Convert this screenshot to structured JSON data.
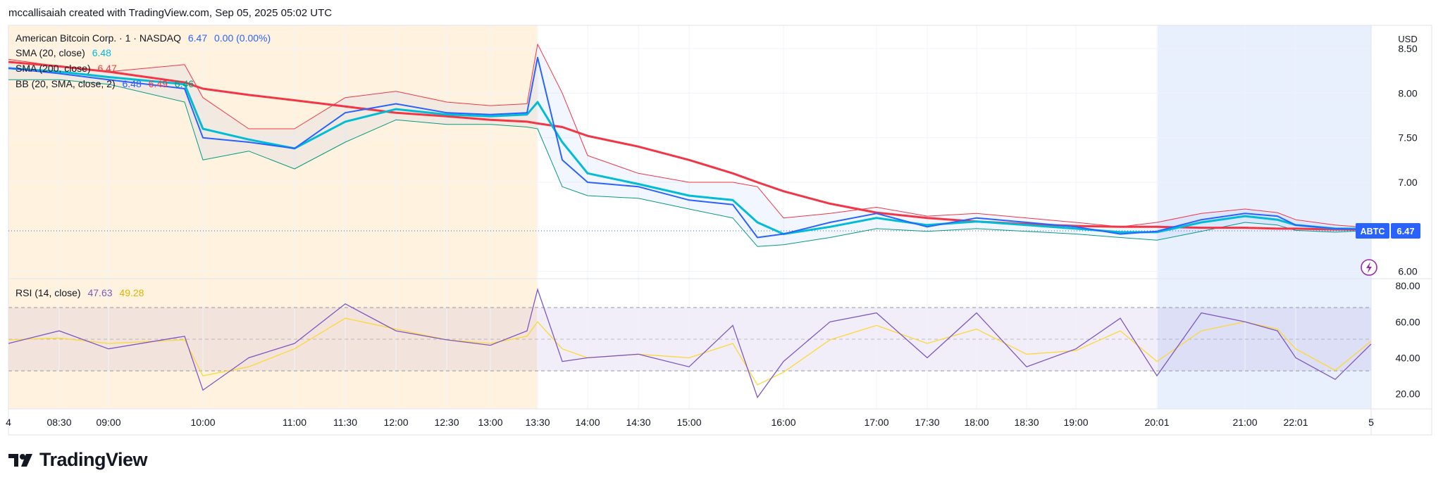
{
  "credit": "mccallisaiah created with TradingView.com, Sep 05, 2025 05:02 UTC",
  "legend": {
    "symbol": "American Bitcoin Corp. · 1 · NASDAQ",
    "last": "6.47",
    "change": "0.00 (0.00%)",
    "sma20_label": "SMA (20, close)",
    "sma20_value": "6.48",
    "sma200_label": "SMA (200, close)",
    "sma200_value": "6.47",
    "bb_label": "BB (20, SMA, close, 2)",
    "bb_basis": "6.48",
    "bb_upper": "6.49",
    "bb_lower": "6.46",
    "rsi_label": "RSI (14, close)",
    "rsi_value": "47.63",
    "rsi_ma_value": "49.28"
  },
  "currency": "USD",
  "ticker_badge": {
    "symbol": "ABTC",
    "price": "6.47"
  },
  "icons": {
    "flash": "lightning-circle-icon",
    "logo": "tradingview-logo-icon"
  },
  "brand": "TradingView",
  "colors": {
    "price": "#2962ff",
    "sma20": "#00bcd4",
    "sma200": "#f23645",
    "bb_upper": "#f23645",
    "bb_lower": "#089981",
    "rsi": "#7e57c2",
    "rsi_ma": "#fdd835",
    "premarket_bg": "#fff3e0",
    "afterhours_bg": "#e3f2fd"
  },
  "chart_data": [
    {
      "type": "line",
      "title": "American Bitcoin Corp. · 1 · NASDAQ",
      "x_tick_labels": [
        "4",
        "08:30",
        "09:00",
        "10:00",
        "11:00",
        "11:30",
        "12:00",
        "12:30",
        "13:00",
        "13:30",
        "14:00",
        "14:30",
        "15:00",
        "16:00",
        "17:00",
        "17:30",
        "18:00",
        "18:30",
        "19:00",
        "20:01",
        "21:00",
        "22:01",
        "5"
      ],
      "y_tick_labels": [
        "8.50",
        "8.00",
        "7.50",
        "7.00",
        "6.00"
      ],
      "ylim": [
        5.95,
        8.65
      ],
      "x": [
        "4",
        "08:30",
        "09:00",
        "09:45",
        "10:00",
        "10:30",
        "11:00",
        "11:30",
        "12:00",
        "12:30",
        "13:00",
        "13:20",
        "13:30",
        "13:45",
        "14:00",
        "14:30",
        "15:00",
        "15:30",
        "15:45",
        "16:00",
        "16:30",
        "17:00",
        "17:30",
        "18:00",
        "18:30",
        "19:00",
        "19:30",
        "20:01",
        "20:30",
        "21:00",
        "21:30",
        "22:01",
        "22:30",
        "5"
      ],
      "series": [
        {
          "name": "Price",
          "values": [
            8.28,
            8.22,
            8.15,
            8.05,
            7.5,
            7.45,
            7.38,
            7.78,
            7.88,
            7.78,
            7.76,
            7.78,
            8.4,
            7.25,
            7.0,
            6.95,
            6.8,
            6.75,
            6.38,
            6.42,
            6.55,
            6.65,
            6.5,
            6.6,
            6.55,
            6.5,
            6.42,
            6.45,
            6.58,
            6.65,
            6.62,
            6.52,
            6.48,
            6.47
          ]
        },
        {
          "name": "SMA (20, close)",
          "values": [
            8.28,
            8.24,
            8.18,
            8.1,
            7.6,
            7.48,
            7.38,
            7.68,
            7.82,
            7.76,
            7.74,
            7.76,
            7.9,
            7.45,
            7.1,
            6.98,
            6.85,
            6.8,
            6.55,
            6.42,
            6.5,
            6.6,
            6.52,
            6.56,
            6.52,
            6.48,
            6.44,
            6.44,
            6.55,
            6.62,
            6.58,
            6.52,
            6.48,
            6.48
          ]
        },
        {
          "name": "SMA (200, close)",
          "values": [
            8.35,
            8.3,
            8.24,
            8.12,
            8.05,
            7.98,
            7.92,
            7.85,
            7.78,
            7.74,
            7.7,
            7.68,
            7.66,
            7.62,
            7.52,
            7.4,
            7.25,
            7.1,
            7.0,
            6.9,
            6.76,
            6.66,
            6.6,
            6.56,
            6.53,
            6.51,
            6.5,
            6.5,
            6.49,
            6.49,
            6.48,
            6.48,
            6.47,
            6.47
          ]
        },
        {
          "name": "BB upper",
          "values": [
            8.38,
            8.3,
            8.24,
            8.32,
            7.95,
            7.6,
            7.6,
            7.95,
            8.02,
            7.9,
            7.86,
            7.88,
            8.55,
            8.0,
            7.3,
            7.1,
            7.0,
            7.0,
            6.95,
            6.6,
            6.65,
            6.72,
            6.62,
            6.65,
            6.6,
            6.55,
            6.5,
            6.55,
            6.65,
            6.7,
            6.66,
            6.58,
            6.52,
            6.49
          ]
        },
        {
          "name": "BB lower",
          "values": [
            8.15,
            8.15,
            8.1,
            7.9,
            7.25,
            7.35,
            7.15,
            7.45,
            7.7,
            7.65,
            7.65,
            7.62,
            7.6,
            6.95,
            6.85,
            6.82,
            6.7,
            6.6,
            6.28,
            6.3,
            6.38,
            6.48,
            6.45,
            6.48,
            6.45,
            6.42,
            6.38,
            6.35,
            6.45,
            6.55,
            6.52,
            6.46,
            6.44,
            6.46
          ]
        }
      ],
      "last_price": 6.47
    },
    {
      "type": "line",
      "title": "RSI (14, close)",
      "y_tick_labels": [
        "80.00",
        "60.00",
        "40.00",
        "20.00"
      ],
      "ylim": [
        12,
        84
      ],
      "bands": {
        "upper": 70,
        "middle": 50,
        "lower": 30
      },
      "x": [
        "4",
        "08:30",
        "09:00",
        "09:45",
        "10:00",
        "10:30",
        "11:00",
        "11:30",
        "12:00",
        "12:30",
        "13:00",
        "13:20",
        "13:30",
        "13:45",
        "14:00",
        "14:30",
        "15:00",
        "15:30",
        "15:45",
        "16:00",
        "16:30",
        "17:00",
        "17:30",
        "18:00",
        "18:30",
        "19:00",
        "19:30",
        "20:01",
        "20:30",
        "21:00",
        "21:30",
        "22:01",
        "22:30",
        "5"
      ],
      "series": [
        {
          "name": "RSI",
          "values": [
            48,
            55,
            45,
            52,
            22,
            40,
            48,
            70,
            55,
            50,
            47,
            55,
            78,
            38,
            40,
            42,
            35,
            58,
            18,
            38,
            60,
            65,
            40,
            65,
            35,
            45,
            62,
            30,
            65,
            60,
            55,
            40,
            28,
            47.63
          ]
        },
        {
          "name": "RSI MA",
          "values": [
            50,
            51,
            48,
            50,
            30,
            35,
            45,
            62,
            56,
            50,
            48,
            52,
            60,
            45,
            40,
            42,
            40,
            48,
            25,
            32,
            50,
            58,
            48,
            56,
            42,
            44,
            55,
            38,
            55,
            60,
            56,
            45,
            33,
            49.28
          ]
        }
      ]
    }
  ]
}
